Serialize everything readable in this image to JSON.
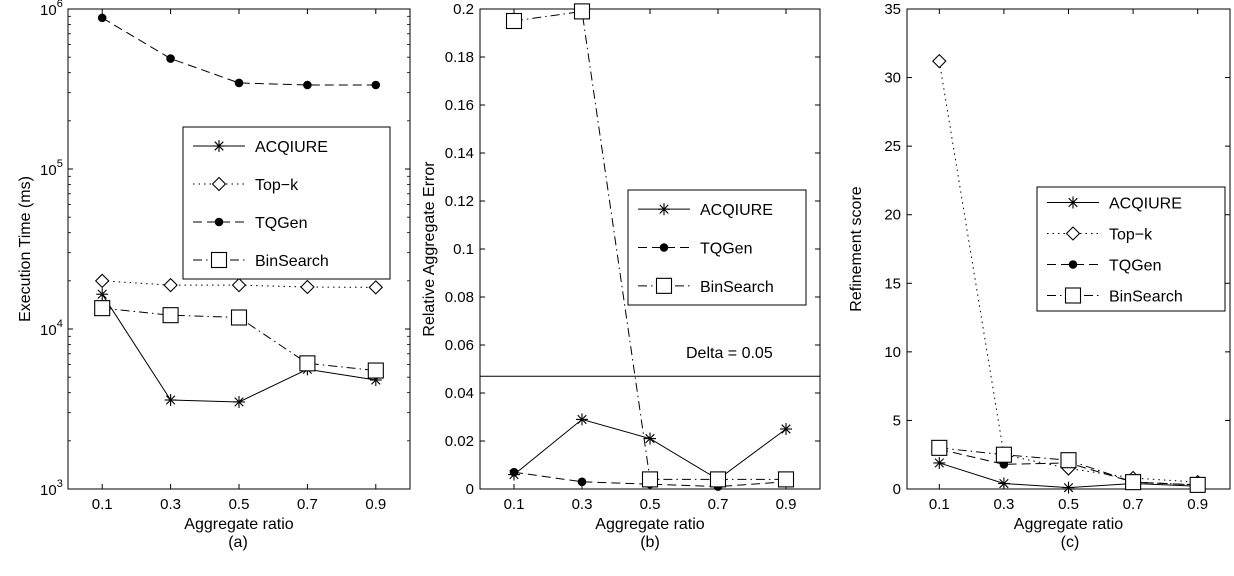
{
  "chart_data": [
    {
      "type": "line",
      "panel": "(a)",
      "xlabel": "Aggregate ratio",
      "ylabel": "Execution Time (ms)",
      "yscale": "log",
      "ylim": [
        1000,
        1000000
      ],
      "xlim": [
        0,
        1
      ],
      "x": [
        0.1,
        0.3,
        0.5,
        0.7,
        0.9
      ],
      "xticks": [
        "0.1",
        "0.3",
        "0.5",
        "0.7",
        "0.9"
      ],
      "yticks": [
        {
          "value": 1000,
          "base": "10",
          "exp": "3"
        },
        {
          "value": 10000,
          "base": "10",
          "exp": "4"
        },
        {
          "value": 100000,
          "base": "10",
          "exp": "5"
        },
        {
          "value": 1000000,
          "base": "10",
          "exp": "6"
        }
      ],
      "legend_position": "right",
      "series": [
        {
          "name": "ACQIURE",
          "style": "solid",
          "marker": "star",
          "values": [
            16500,
            3600,
            3500,
            5600,
            4800
          ]
        },
        {
          "name": "Top−k",
          "style": "dotted",
          "marker": "diamond",
          "values": [
            20000,
            18800,
            18800,
            18300,
            18200
          ]
        },
        {
          "name": "TQGen",
          "style": "dashed",
          "marker": "dot",
          "values": [
            880000,
            490000,
            345000,
            335000,
            335000
          ]
        },
        {
          "name": "BinSearch",
          "style": "dashdot",
          "marker": "square",
          "values": [
            13500,
            12200,
            11800,
            6100,
            5500
          ]
        }
      ]
    },
    {
      "type": "line",
      "panel": "(b)",
      "xlabel": "Aggregate ratio",
      "ylabel": "Relative Aggregate Error",
      "ylim": [
        0,
        0.2
      ],
      "xlim": [
        0,
        1
      ],
      "x": [
        0.1,
        0.3,
        0.5,
        0.7,
        0.9
      ],
      "xticks": [
        "0.1",
        "0.3",
        "0.5",
        "0.7",
        "0.9"
      ],
      "yticks": [
        "0",
        "0.02",
        "0.04",
        "0.06",
        "0.08",
        "0.1",
        "0.12",
        "0.14",
        "0.16",
        "0.18",
        "0.2"
      ],
      "legend_position": "right",
      "reference_line": {
        "value": 0.047,
        "label": "Delta = 0.05"
      },
      "series": [
        {
          "name": "ACQIURE",
          "style": "solid",
          "marker": "star",
          "values": [
            0.006,
            0.029,
            0.021,
            0.004,
            0.025
          ]
        },
        {
          "name": "TQGen",
          "style": "dashed",
          "marker": "dot",
          "values": [
            0.007,
            0.003,
            0.002,
            0.001,
            0.003
          ]
        },
        {
          "name": "BinSearch",
          "style": "dashdot",
          "marker": "square",
          "values": [
            0.195,
            0.199,
            0.004,
            0.004,
            0.004
          ]
        }
      ]
    },
    {
      "type": "line",
      "panel": "(c)",
      "xlabel": "Aggregate ratio",
      "ylabel": "Refinement score",
      "ylim": [
        0,
        35
      ],
      "xlim": [
        0,
        1
      ],
      "x": [
        0.1,
        0.3,
        0.5,
        0.7,
        0.9
      ],
      "xticks": [
        "0.1",
        "0.3",
        "0.5",
        "0.7",
        "0.9"
      ],
      "yticks": [
        "0",
        "5",
        "10",
        "15",
        "20",
        "25",
        "30",
        "35"
      ],
      "legend_position": "right",
      "series": [
        {
          "name": "ACQIURE",
          "style": "solid",
          "marker": "star",
          "values": [
            1.9,
            0.4,
            0.1,
            0.4,
            0.2
          ]
        },
        {
          "name": "Top−k",
          "style": "dotted",
          "marker": "diamond",
          "values": [
            31.2,
            2.5,
            1.5,
            0.8,
            0.5
          ]
        },
        {
          "name": "TQGen",
          "style": "dashed",
          "marker": "dot",
          "values": [
            2.9,
            1.8,
            1.9,
            0.5,
            0.3
          ]
        },
        {
          "name": "BinSearch",
          "style": "dashdot",
          "marker": "square",
          "values": [
            3.0,
            2.5,
            2.1,
            0.5,
            0.3
          ]
        }
      ]
    }
  ]
}
